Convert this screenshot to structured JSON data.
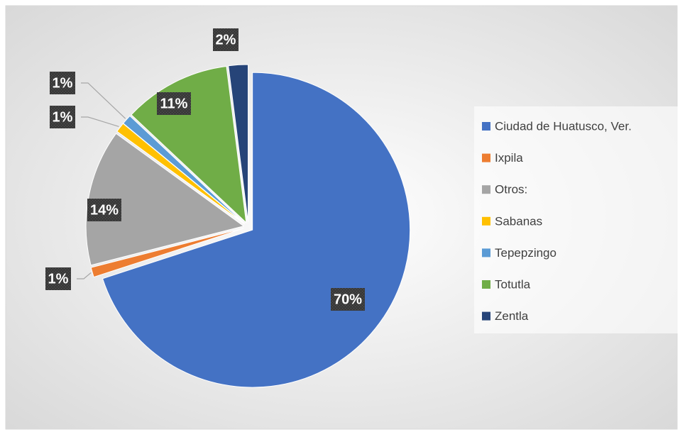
{
  "chart_data": {
    "type": "pie",
    "categories": [
      "Ciudad de Huatusco, Ver.",
      "Ixpila",
      "Otros:",
      "Sabanas",
      "Tepepzingo",
      "Totutla",
      "Zentla"
    ],
    "values": [
      70,
      1,
      14,
      1,
      1,
      11,
      2
    ],
    "value_labels": [
      "70%",
      "1%",
      "14%",
      "1%",
      "1%",
      "11%",
      "2%"
    ],
    "colors": [
      "#4472c4",
      "#ed7d31",
      "#a5a5a5",
      "#ffc000",
      "#5b9bd5",
      "#70ad47",
      "#264478"
    ],
    "legend": "right"
  }
}
